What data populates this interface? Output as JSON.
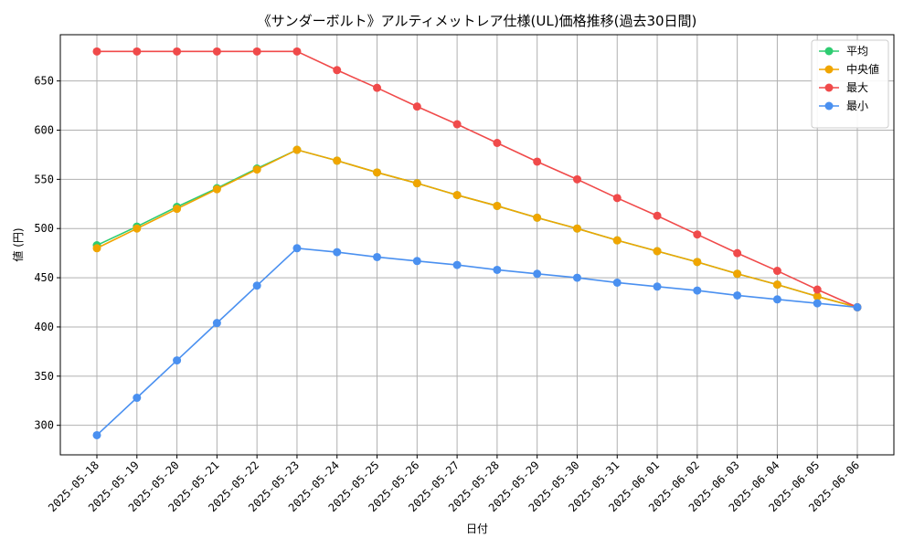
{
  "chart_data": {
    "type": "line",
    "title": "《サンダーボルト》アルティメットレア仕様(UL)価格推移(過去30日間)",
    "xlabel": "日付",
    "ylabel": "値 (円)",
    "ylim": [
      270,
      697
    ],
    "yticks": [
      300,
      350,
      400,
      450,
      500,
      550,
      600,
      650
    ],
    "grid": true,
    "legend_position": "top-right",
    "categories": [
      "2025-05-18",
      "2025-05-19",
      "2025-05-20",
      "2025-05-21",
      "2025-05-22",
      "2025-05-23",
      "2025-05-24",
      "2025-05-25",
      "2025-05-26",
      "2025-05-27",
      "2025-05-28",
      "2025-05-29",
      "2025-05-30",
      "2025-05-31",
      "2025-06-01",
      "2025-06-02",
      "2025-06-03",
      "2025-06-04",
      "2025-06-05",
      "2025-06-06"
    ],
    "series": [
      {
        "name": "平均",
        "color": "#2ecc71",
        "values": [
          483,
          502,
          522,
          541,
          561,
          580,
          569,
          557,
          546,
          534,
          523,
          511,
          500,
          488,
          477,
          466,
          454,
          443,
          431,
          420
        ]
      },
      {
        "name": "中央値",
        "color": "#f0a500",
        "values": [
          480,
          500,
          520,
          540,
          560,
          580,
          569,
          557,
          546,
          534,
          523,
          511,
          500,
          488,
          477,
          466,
          454,
          443,
          431,
          420
        ]
      },
      {
        "name": "最大",
        "color": "#f04a4a",
        "values": [
          680,
          680,
          680,
          680,
          680,
          680,
          661,
          643,
          624,
          606,
          587,
          568,
          550,
          531,
          513,
          494,
          475,
          457,
          438,
          420
        ]
      },
      {
        "name": "最小",
        "color": "#4a90f0",
        "values": [
          290,
          328,
          366,
          404,
          442,
          480,
          476,
          471,
          467,
          463,
          458,
          454,
          450,
          445,
          441,
          437,
          432,
          428,
          424,
          420
        ]
      }
    ]
  }
}
